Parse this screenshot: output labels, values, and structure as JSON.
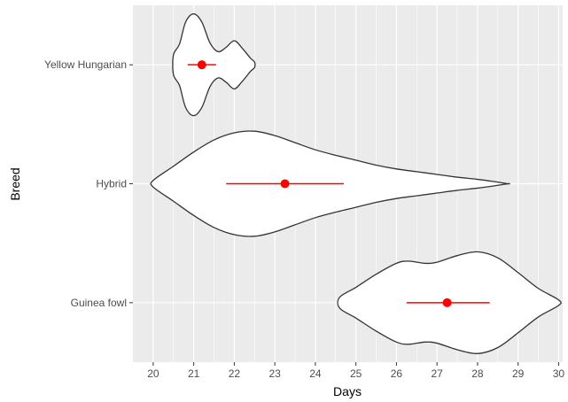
{
  "chart_data": {
    "type": "violin",
    "xlabel": "Days",
    "ylabel": "Breed",
    "xlim": [
      19.5,
      30.1
    ],
    "x_ticks": [
      20,
      21,
      22,
      23,
      24,
      25,
      26,
      27,
      28,
      29,
      30
    ],
    "grid": true,
    "legend": "none",
    "colors": {
      "panel": "#ebebeb",
      "grid": "#ffffff",
      "violin_fill": "#ffffff",
      "violin_stroke": "#333333",
      "summary": "#ff0000"
    },
    "categories": [
      "Guinea fowl",
      "Hybrid",
      "Yellow Hungarian"
    ],
    "series": [
      {
        "category": "Guinea fowl",
        "range": [
          24.6,
          30.0
        ],
        "mean": 27.25,
        "interval": [
          26.25,
          28.3
        ],
        "density": [
          [
            24.6,
            0.1
          ],
          [
            25.0,
            0.28
          ],
          [
            25.5,
            0.52
          ],
          [
            26.0,
            0.72
          ],
          [
            26.3,
            0.76
          ],
          [
            26.7,
            0.72
          ],
          [
            27.0,
            0.74
          ],
          [
            27.5,
            0.86
          ],
          [
            28.0,
            0.93
          ],
          [
            28.5,
            0.82
          ],
          [
            29.0,
            0.55
          ],
          [
            29.5,
            0.26
          ],
          [
            30.0,
            0.05
          ]
        ]
      },
      {
        "category": "Hybrid",
        "range": [
          20.0,
          28.75
        ],
        "mean": 23.25,
        "interval": [
          21.8,
          24.7
        ],
        "density": [
          [
            20.0,
            0.06
          ],
          [
            20.5,
            0.32
          ],
          [
            21.0,
            0.58
          ],
          [
            21.5,
            0.8
          ],
          [
            22.0,
            0.93
          ],
          [
            22.5,
            0.96
          ],
          [
            23.0,
            0.88
          ],
          [
            23.5,
            0.75
          ],
          [
            24.0,
            0.62
          ],
          [
            24.5,
            0.52
          ],
          [
            25.0,
            0.43
          ],
          [
            25.5,
            0.34
          ],
          [
            26.0,
            0.27
          ],
          [
            26.5,
            0.22
          ],
          [
            27.0,
            0.17
          ],
          [
            27.5,
            0.12
          ],
          [
            28.0,
            0.08
          ],
          [
            28.4,
            0.04
          ],
          [
            28.75,
            0.0
          ]
        ]
      },
      {
        "category": "Yellow Hungarian",
        "range": [
          20.5,
          22.5
        ],
        "mean": 21.2,
        "interval": [
          20.85,
          21.55
        ],
        "density": [
          [
            20.5,
            0.18
          ],
          [
            20.65,
            0.38
          ],
          [
            20.8,
            0.78
          ],
          [
            21.0,
            0.93
          ],
          [
            21.2,
            0.78
          ],
          [
            21.4,
            0.4
          ],
          [
            21.6,
            0.24
          ],
          [
            21.8,
            0.32
          ],
          [
            22.0,
            0.44
          ],
          [
            22.2,
            0.3
          ],
          [
            22.4,
            0.12
          ],
          [
            22.5,
            0.05
          ]
        ]
      }
    ]
  }
}
